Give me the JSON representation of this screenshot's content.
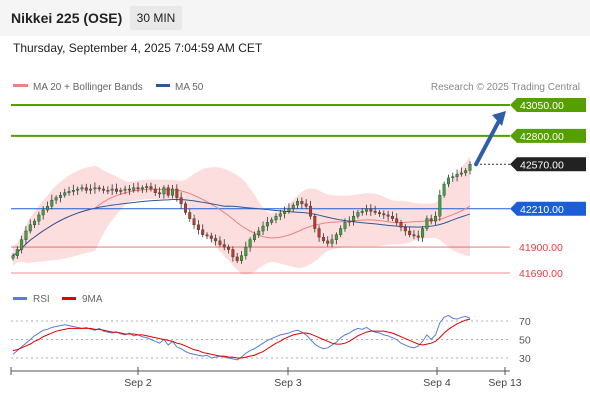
{
  "header": {
    "title": "Nikkei 225 (OSE)",
    "timeframe": "30 MIN",
    "datetime": "Thursday, September 4, 2025 7:04:59 AM CET"
  },
  "legend": {
    "bollinger": "MA 20 + Bollinger Bands",
    "ma50": "MA 50",
    "bollinger_color": "#f08080",
    "ma50_color": "#2a5a9a"
  },
  "credit": "Research © 2025 Trading Central",
  "rsi_legend": {
    "rsi": "RSI",
    "ma": "9MA",
    "rsi_color": "#5b7bd6",
    "ma_color": "#e00000"
  },
  "chart_data": {
    "type": "candlestick",
    "x_labels": [
      "Sep 2",
      "Sep 3",
      "Sep 4",
      "Sep 13"
    ],
    "y_range": [
      41580,
      43150
    ],
    "levels": [
      {
        "value": 43050,
        "label": "43050.00",
        "color": "#55a000",
        "style": "resistance"
      },
      {
        "value": 42800,
        "label": "42800.00",
        "color": "#55a000",
        "style": "resistance"
      },
      {
        "value": 42570,
        "label": "42570.00",
        "color": "#222222",
        "style": "last"
      },
      {
        "value": 42210,
        "label": "42210.00",
        "color": "#1a5fd8",
        "style": "pivot"
      },
      {
        "value": 41900,
        "label": "41900.00",
        "color": "#e04040",
        "style": "support"
      },
      {
        "value": 41690,
        "label": "41690.00",
        "color": "#e04040",
        "style": "support"
      }
    ],
    "closes": [
      41830,
      41880,
      41960,
      42030,
      42080,
      42110,
      42160,
      42200,
      42230,
      42280,
      42300,
      42320,
      42340,
      42350,
      42360,
      42370,
      42380,
      42360,
      42370,
      42380,
      42370,
      42360,
      42360,
      42370,
      42350,
      42360,
      42370,
      42360,
      42380,
      42370,
      42380,
      42390,
      42370,
      42340,
      42330,
      42380,
      42320,
      42370,
      42300,
      42250,
      42180,
      42130,
      42080,
      42040,
      42000,
      41990,
      41970,
      41950,
      41920,
      41900,
      41880,
      41820,
      41790,
      41830,
      41900,
      41960,
      42000,
      42030,
      42070,
      42100,
      42120,
      42150,
      42170,
      42190,
      42210,
      42240,
      42270,
      42250,
      42230,
      42150,
      42050,
      41980,
      41950,
      41930,
      41960,
      42000,
      42050,
      42100,
      42110,
      42150,
      42180,
      42190,
      42210,
      42190,
      42180,
      42170,
      42160,
      42150,
      42130,
      42100,
      42060,
      42030,
      42000,
      41990,
      41980,
      42050,
      42130,
      42110,
      42150,
      42320,
      42410,
      42460,
      42470,
      42490,
      42500,
      42520,
      42570
    ],
    "rsi": {
      "levels": [
        70,
        50,
        30
      ],
      "values": [
        34,
        38,
        42,
        46,
        50,
        54,
        57,
        60,
        61,
        63,
        64,
        65,
        66,
        65,
        64,
        63,
        62,
        63,
        61,
        60,
        62,
        59,
        58,
        57,
        58,
        56,
        55,
        57,
        54,
        55,
        53,
        52,
        50,
        48,
        46,
        50,
        44,
        48,
        42,
        40,
        37,
        35,
        34,
        33,
        32,
        33,
        30,
        31,
        32,
        31,
        30,
        29,
        28,
        31,
        35,
        38,
        40,
        43,
        46,
        49,
        51,
        53,
        55,
        56,
        57,
        59,
        60,
        58,
        55,
        50,
        45,
        42,
        40,
        41,
        44,
        47,
        52,
        55,
        57,
        60,
        62,
        61,
        63,
        60,
        58,
        57,
        55,
        54,
        52,
        50,
        46,
        44,
        42,
        41,
        43,
        48,
        55,
        50,
        55,
        68,
        74,
        76,
        73,
        72,
        74,
        75,
        73
      ],
      "ma": [
        38,
        39,
        41,
        43,
        45,
        48,
        50,
        53,
        55,
        57,
        59,
        60,
        61,
        62,
        62,
        62,
        62,
        62,
        62,
        61,
        61,
        60,
        59,
        58,
        58,
        57,
        56,
        56,
        56,
        55,
        55,
        54,
        53,
        52,
        51,
        50,
        49,
        48,
        46,
        45,
        43,
        41,
        39,
        38,
        36,
        35,
        34,
        33,
        32,
        32,
        31,
        31,
        30,
        30,
        31,
        32,
        33,
        35,
        37,
        40,
        43,
        46,
        48,
        51,
        53,
        55,
        56,
        57,
        57,
        56,
        54,
        52,
        50,
        48,
        46,
        45,
        45,
        46,
        48,
        51,
        54,
        56,
        58,
        59,
        59,
        59,
        59,
        58,
        57,
        55,
        53,
        51,
        49,
        47,
        45,
        44,
        45,
        46,
        48,
        52,
        57,
        61,
        64,
        67,
        69,
        71,
        72
      ]
    }
  }
}
